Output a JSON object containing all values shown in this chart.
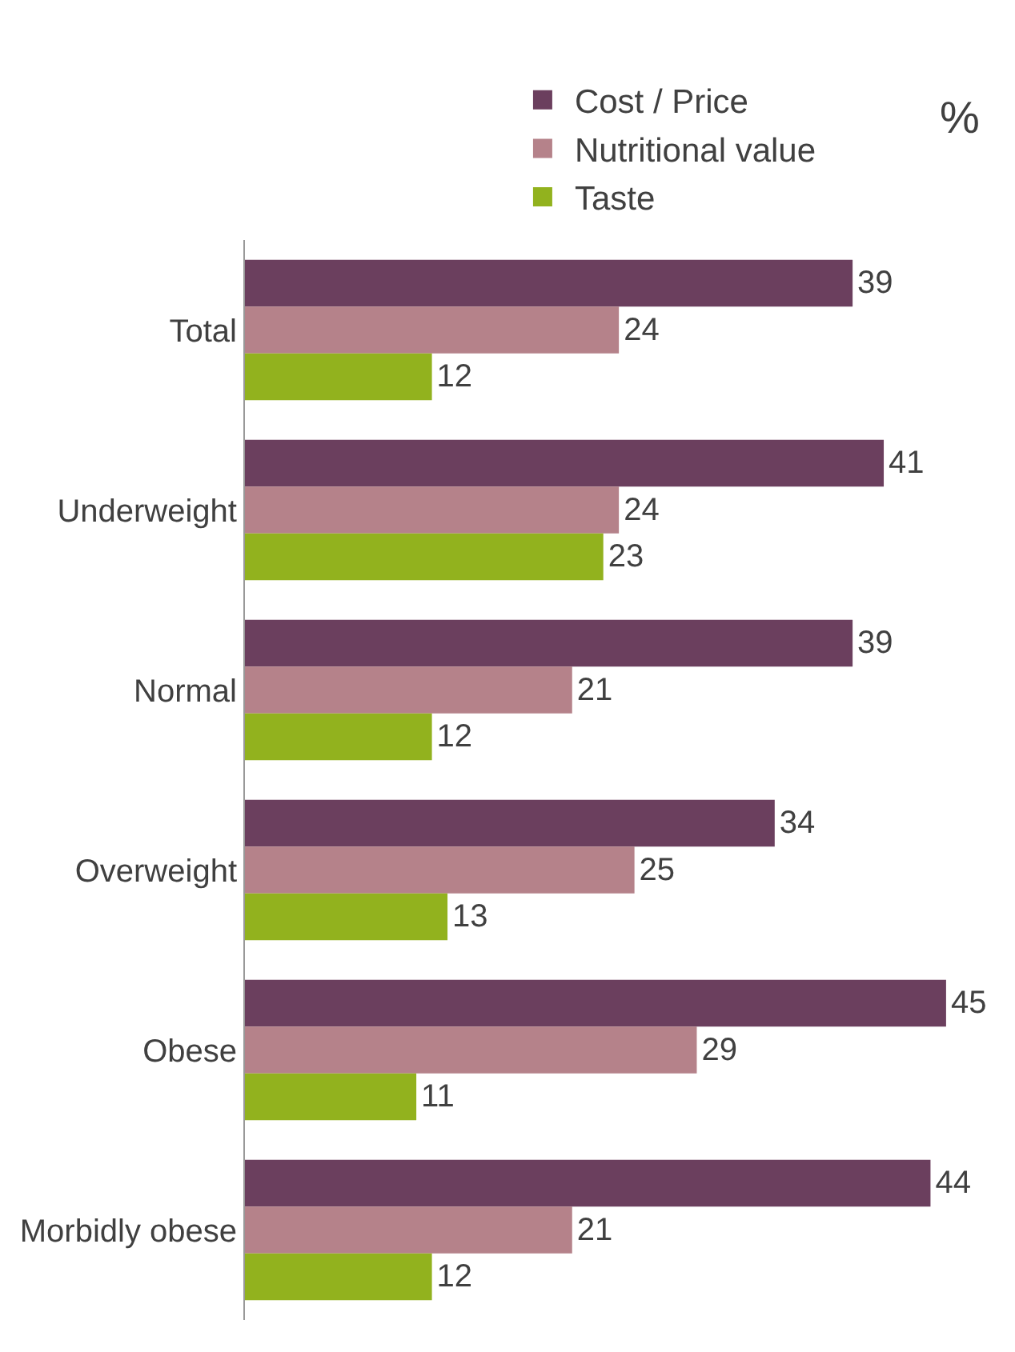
{
  "chart_data": {
    "type": "bar",
    "orientation": "horizontal",
    "categories": [
      "Total",
      "Underweight",
      "Normal",
      "Overweight",
      "Obese",
      "Morbidly obese"
    ],
    "series": [
      {
        "name": "Cost / Price",
        "color": "#6b3f5e",
        "values": [
          39,
          41,
          39,
          34,
          45,
          44
        ]
      },
      {
        "name": "Nutritional value",
        "color": "#b5828a",
        "values": [
          24,
          24,
          21,
          25,
          29,
          21
        ]
      },
      {
        "name": "Taste",
        "color": "#92b21e",
        "values": [
          12,
          23,
          12,
          13,
          11,
          12
        ]
      }
    ],
    "data_labels": true,
    "tick_labels": "y",
    "legend": "top",
    "annotations": [
      "%"
    ]
  }
}
